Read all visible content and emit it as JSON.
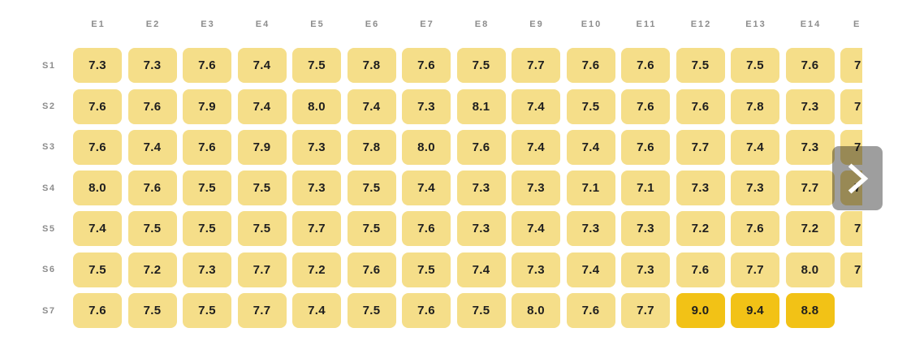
{
  "chart_data": {
    "type": "heatmap",
    "x_labels": [
      "E1",
      "E2",
      "E3",
      "E4",
      "E5",
      "E6",
      "E7",
      "E8",
      "E9",
      "E10",
      "E11",
      "E12",
      "E13",
      "E14"
    ],
    "y_labels": [
      "S1",
      "S2",
      "S3",
      "S4",
      "S5",
      "S6",
      "S7"
    ],
    "values": [
      [
        7.3,
        7.3,
        7.6,
        7.4,
        7.5,
        7.8,
        7.6,
        7.5,
        7.7,
        7.6,
        7.6,
        7.5,
        7.5,
        7.6
      ],
      [
        7.6,
        7.6,
        7.9,
        7.4,
        8.0,
        7.4,
        7.3,
        8.1,
        7.4,
        7.5,
        7.6,
        7.6,
        7.8,
        7.3
      ],
      [
        7.6,
        7.4,
        7.6,
        7.9,
        7.3,
        7.8,
        8.0,
        7.6,
        7.4,
        7.4,
        7.6,
        7.7,
        7.4,
        7.3
      ],
      [
        8.0,
        7.6,
        7.5,
        7.5,
        7.3,
        7.5,
        7.4,
        7.3,
        7.3,
        7.1,
        7.1,
        7.3,
        7.3,
        7.7
      ],
      [
        7.4,
        7.5,
        7.5,
        7.5,
        7.7,
        7.5,
        7.6,
        7.3,
        7.4,
        7.3,
        7.3,
        7.2,
        7.6,
        7.2
      ],
      [
        7.5,
        7.2,
        7.3,
        7.7,
        7.2,
        7.6,
        7.5,
        7.4,
        7.3,
        7.4,
        7.3,
        7.6,
        7.7,
        8.0
      ],
      [
        7.6,
        7.5,
        7.5,
        7.7,
        7.4,
        7.5,
        7.6,
        7.5,
        8.0,
        7.6,
        7.7,
        9.0,
        9.4,
        8.8
      ]
    ],
    "partial_column": {
      "visible_header": "E",
      "visible_cell_text": "7",
      "visible_in_rows": [
        "S1",
        "S2",
        "S3",
        "S4",
        "S5",
        "S6"
      ]
    },
    "high_threshold": 8.5,
    "color_low": "#F5DE89",
    "color_high": "#F2C216",
    "label_color": "#8C8C8C",
    "value_color": "#1E1E1E",
    "grid": false,
    "legend": false
  },
  "ui": {
    "scroll_button": {
      "icon": "chevron-right",
      "overlay_color": "rgba(0,0,0,0.38)"
    }
  }
}
